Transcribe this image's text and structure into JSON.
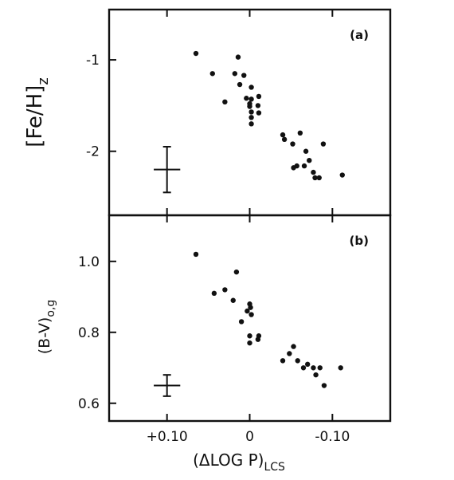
{
  "chart_data": [
    {
      "type": "scatter",
      "panel_label": "(a)",
      "ylabel": "[Fe/H]",
      "ylabel_subscript": "z",
      "xlabel": "",
      "xlim": [
        0.17,
        -0.17
      ],
      "ylim": [
        -2.7,
        -0.45
      ],
      "x_ticks": [
        0.1,
        0.0,
        -0.1
      ],
      "y_ticks": [
        {
          "value": -1,
          "label": "-1"
        },
        {
          "value": -2,
          "label": "-2"
        }
      ],
      "error_bar": {
        "x": 0.1,
        "y": -2.2,
        "xerr": 0.016,
        "yerr": 0.25
      },
      "points": [
        {
          "x": 0.065,
          "y": -0.93
        },
        {
          "x": 0.045,
          "y": -1.15
        },
        {
          "x": 0.03,
          "y": -1.46
        },
        {
          "x": 0.018,
          "y": -1.15
        },
        {
          "x": 0.014,
          "y": -0.97
        },
        {
          "x": 0.012,
          "y": -1.27
        },
        {
          "x": 0.007,
          "y": -1.17
        },
        {
          "x": 0.004,
          "y": -1.42
        },
        {
          "x": 0.0,
          "y": -1.48
        },
        {
          "x": 0.0,
          "y": -1.51
        },
        {
          "x": -0.002,
          "y": -1.3
        },
        {
          "x": -0.002,
          "y": -1.43
        },
        {
          "x": -0.002,
          "y": -1.57
        },
        {
          "x": -0.002,
          "y": -1.63
        },
        {
          "x": -0.002,
          "y": -1.7
        },
        {
          "x": -0.01,
          "y": -1.5
        },
        {
          "x": -0.011,
          "y": -1.58
        },
        {
          "x": -0.011,
          "y": -1.4
        },
        {
          "x": -0.04,
          "y": -1.82
        },
        {
          "x": -0.042,
          "y": -1.87
        },
        {
          "x": -0.052,
          "y": -1.92
        },
        {
          "x": -0.053,
          "y": -2.18
        },
        {
          "x": -0.057,
          "y": -2.16
        },
        {
          "x": -0.061,
          "y": -1.8
        },
        {
          "x": -0.066,
          "y": -2.16
        },
        {
          "x": -0.068,
          "y": -2.0
        },
        {
          "x": -0.072,
          "y": -2.1
        },
        {
          "x": -0.077,
          "y": -2.23
        },
        {
          "x": -0.079,
          "y": -2.29
        },
        {
          "x": -0.084,
          "y": -2.29
        },
        {
          "x": -0.089,
          "y": -1.92
        },
        {
          "x": -0.112,
          "y": -2.26
        }
      ]
    },
    {
      "type": "scatter",
      "panel_label": "(b)",
      "ylabel": "(B-V)",
      "ylabel_subscript": "o,g",
      "xlabel": "(ΔLOG P)",
      "xlabel_subscript": "LCS",
      "xlim": [
        0.17,
        -0.17
      ],
      "ylim": [
        0.55,
        1.13
      ],
      "x_ticks": [
        {
          "value": 0.1,
          "label": "+0.10"
        },
        {
          "value": 0.0,
          "label": "0"
        },
        {
          "value": -0.1,
          "label": "-0.10"
        }
      ],
      "y_ticks": [
        {
          "value": 0.6,
          "label": "0.6"
        },
        {
          "value": 0.8,
          "label": "0.8"
        },
        {
          "value": 1.0,
          "label": "1.0"
        }
      ],
      "error_bar": {
        "x": 0.1,
        "y": 0.65,
        "xerr": 0.016,
        "yerr": 0.03
      },
      "points": [
        {
          "x": 0.065,
          "y": 1.02
        },
        {
          "x": 0.043,
          "y": 0.91
        },
        {
          "x": 0.03,
          "y": 0.92
        },
        {
          "x": 0.02,
          "y": 0.89
        },
        {
          "x": 0.016,
          "y": 0.97
        },
        {
          "x": 0.01,
          "y": 0.83
        },
        {
          "x": 0.003,
          "y": 0.86
        },
        {
          "x": 0.0,
          "y": 0.88
        },
        {
          "x": -0.002,
          "y": 0.85
        },
        {
          "x": -0.001,
          "y": 0.87
        },
        {
          "x": 0.0,
          "y": 0.79
        },
        {
          "x": 0.0,
          "y": 0.77
        },
        {
          "x": -0.01,
          "y": 0.78
        },
        {
          "x": -0.011,
          "y": 0.79
        },
        {
          "x": -0.04,
          "y": 0.72
        },
        {
          "x": -0.048,
          "y": 0.74
        },
        {
          "x": -0.053,
          "y": 0.76
        },
        {
          "x": -0.058,
          "y": 0.72
        },
        {
          "x": -0.065,
          "y": 0.7
        },
        {
          "x": -0.07,
          "y": 0.71
        },
        {
          "x": -0.077,
          "y": 0.7
        },
        {
          "x": -0.08,
          "y": 0.68
        },
        {
          "x": -0.085,
          "y": 0.7
        },
        {
          "x": -0.09,
          "y": 0.65
        },
        {
          "x": -0.11,
          "y": 0.7
        }
      ]
    }
  ]
}
